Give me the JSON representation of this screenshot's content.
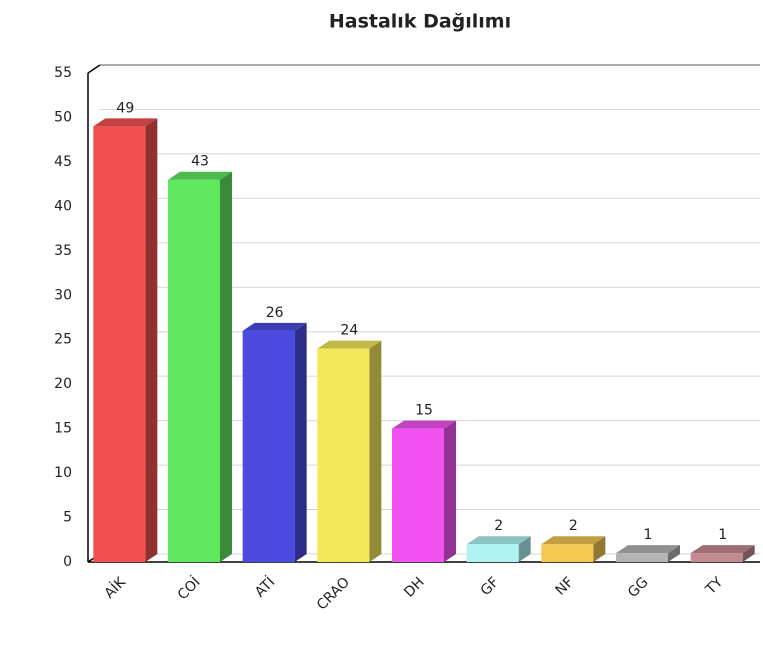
{
  "chart_data": {
    "type": "bar",
    "title": "Hastalık Dağılımı",
    "categories": [
      "AİK",
      "COİ",
      "ATİ",
      "CRAO",
      "DH",
      "GF",
      "NF",
      "GG",
      "TY"
    ],
    "values": [
      49,
      43,
      26,
      24,
      15,
      2,
      2,
      1,
      1
    ],
    "colors": [
      "#f2504f",
      "#5fe85f",
      "#4b4be2",
      "#f2e85a",
      "#f252f2",
      "#aef2f2",
      "#f2c851",
      "#b4b4b4",
      "#c48a94"
    ],
    "ylim": [
      0,
      55
    ],
    "yticks": [
      0,
      5,
      10,
      15,
      20,
      25,
      30,
      35,
      40,
      45,
      50,
      55
    ],
    "grid": true
  }
}
